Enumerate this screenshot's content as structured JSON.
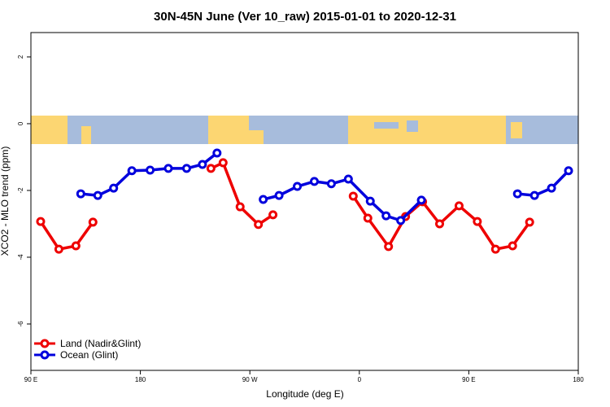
{
  "chart_data": {
    "type": "line",
    "title": "30N-45N June (Ver 10_raw)   2015-01-01 to 2020-12-31",
    "x_label": "Longitude (deg E)",
    "y_label": "XCO2 - MLO trend (ppm)",
    "xlim": [
      90,
      540
    ],
    "ylim": [
      2.73,
      -7.39
    ],
    "xticks": [
      {
        "value": 90,
        "label": "90 E"
      },
      180,
      {
        "value": 270,
        "label": "90 W"
      },
      {
        "value": 360,
        "label": "0"
      },
      {
        "value": 450,
        "label": "90 E"
      },
      {
        "value": 540,
        "label": "180"
      }
    ],
    "yticks": [
      2,
      0,
      -2,
      -4,
      -6
    ],
    "legend": "bottom-left",
    "series": [
      {
        "name": "Land (Nadir&Glint)",
        "color": "#ee0000",
        "x": [
          98,
          113,
          127,
          141,
          null,
          238,
          248,
          262,
          277,
          289,
          null,
          355,
          367,
          384,
          398,
          412,
          426,
          442,
          457,
          472,
          486,
          500
        ],
        "values": [
          -2.93,
          -3.76,
          -3.66,
          -2.95,
          null,
          -1.34,
          -1.17,
          -2.49,
          -3.02,
          -2.73,
          null,
          -2.17,
          -2.83,
          -3.68,
          -2.78,
          -2.34,
          -3.0,
          -2.46,
          -2.93,
          -3.76,
          -3.66,
          -2.95
        ]
      },
      {
        "name": "Ocean (Glint)",
        "color": "#0000dd",
        "x": [
          131,
          145,
          158,
          173,
          188,
          203,
          218,
          231,
          243,
          null,
          281,
          294,
          309,
          323,
          337,
          351,
          369,
          382,
          394,
          411,
          null,
          490,
          504,
          518,
          532
        ],
        "values": [
          -2.1,
          -2.15,
          -1.93,
          -1.41,
          -1.39,
          -1.34,
          -1.34,
          -1.22,
          -0.88,
          null,
          -2.27,
          -2.15,
          -1.88,
          -1.73,
          -1.8,
          -1.66,
          -2.32,
          -2.76,
          -2.9,
          -2.29,
          null,
          -2.1,
          -2.15,
          -1.93,
          -1.41
        ]
      }
    ]
  }
}
